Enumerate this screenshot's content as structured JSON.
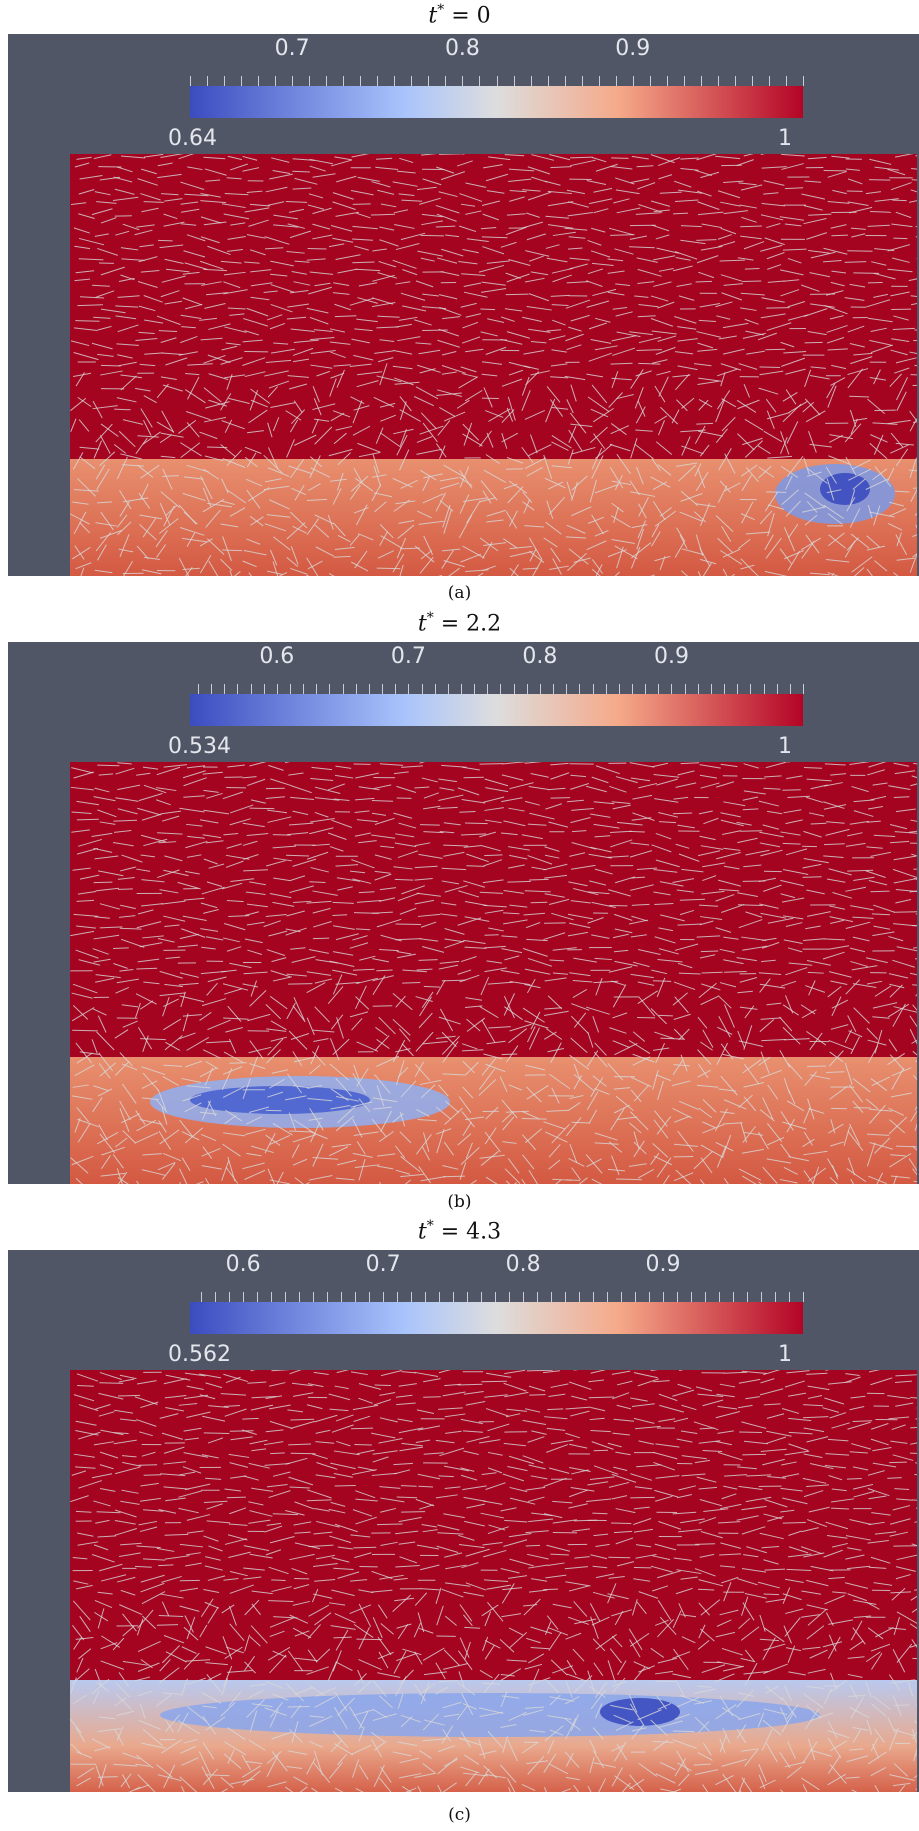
{
  "colormap": {
    "low": "#3b4cc0",
    "mid": "#dddddd",
    "high": "#b40426",
    "background": "#505666",
    "vector_color": "#d9d9d9"
  },
  "panels": [
    {
      "title_var": "t",
      "title_sup": "*",
      "title_eq": " = 0",
      "caption": "(a)",
      "colorbar": {
        "min_label": "0.64",
        "max_label": "1",
        "min": 0.64,
        "max": 1,
        "tick_labels": [
          "0.7",
          "0.8",
          "0.9"
        ],
        "ticks": [
          0.7,
          0.8,
          0.9
        ]
      }
    },
    {
      "title_var": "t",
      "title_sup": "*",
      "title_eq": " = 2.2",
      "caption": "(b)",
      "colorbar": {
        "min_label": "0.534",
        "max_label": "1",
        "min": 0.534,
        "max": 1,
        "tick_labels": [
          "0.6",
          "0.7",
          "0.8",
          "0.9"
        ],
        "ticks": [
          0.6,
          0.7,
          0.8,
          0.9
        ]
      }
    },
    {
      "title_var": "t",
      "title_sup": "*",
      "title_eq": " = 4.3",
      "caption": "(c)",
      "colorbar": {
        "min_label": "0.562",
        "max_label": "1",
        "min": 0.562,
        "max": 1,
        "tick_labels": [
          "0.6",
          "0.7",
          "0.8",
          "0.9"
        ],
        "ticks": [
          0.6,
          0.7,
          0.8,
          0.9
        ]
      }
    }
  ]
}
